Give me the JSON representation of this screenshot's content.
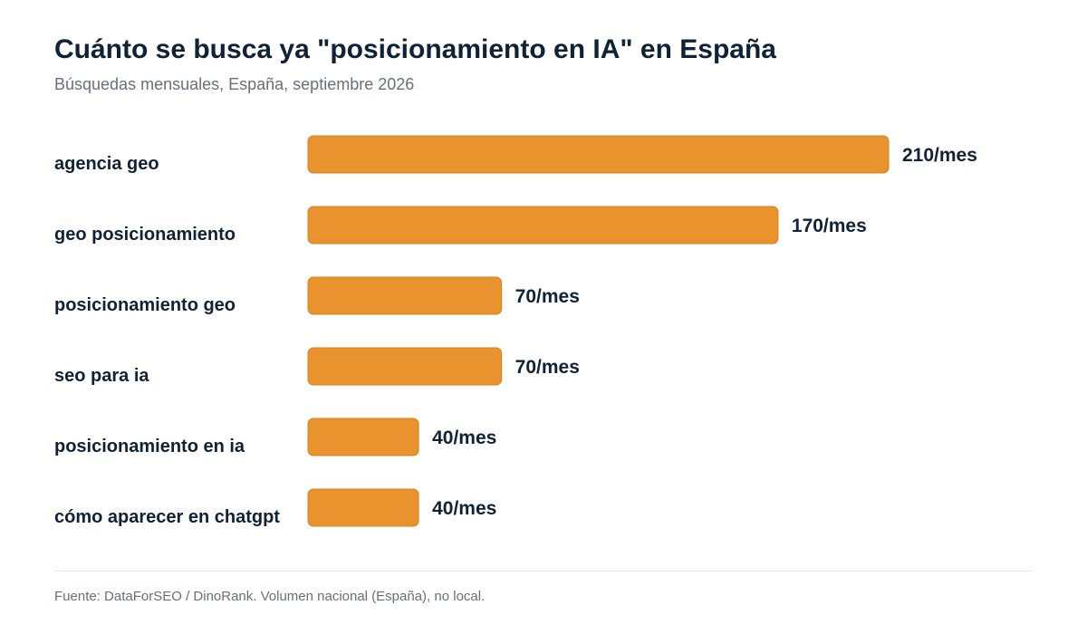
{
  "header": {
    "title": "Cuánto se busca ya \"posicionamiento en IA\" en España",
    "subtitle": "Búsquedas mensuales, España, septiembre 2026"
  },
  "footer": {
    "source": "Fuente: DataForSEO / DinoRank. Volumen nacional (España), no local."
  },
  "chart_data": {
    "type": "bar",
    "orientation": "horizontal",
    "title": "Cuánto se busca ya \"posicionamiento en IA\" en España",
    "subtitle": "Búsquedas mensuales, España, septiembre 2026",
    "categories": [
      "agencia geo",
      "geo posicionamiento",
      "posicionamiento geo",
      "seo para ia",
      "posicionamiento en ia",
      "cómo aparecer en chatgpt"
    ],
    "values": [
      210,
      170,
      70,
      70,
      40,
      40
    ],
    "value_labels": [
      "210/mes",
      "170/mes",
      "70/mes",
      "70/mes",
      "40/mes",
      "40/mes"
    ],
    "xlim": [
      0,
      210
    ],
    "grid": false,
    "legend": "none",
    "bar_color": "#e8932e"
  }
}
